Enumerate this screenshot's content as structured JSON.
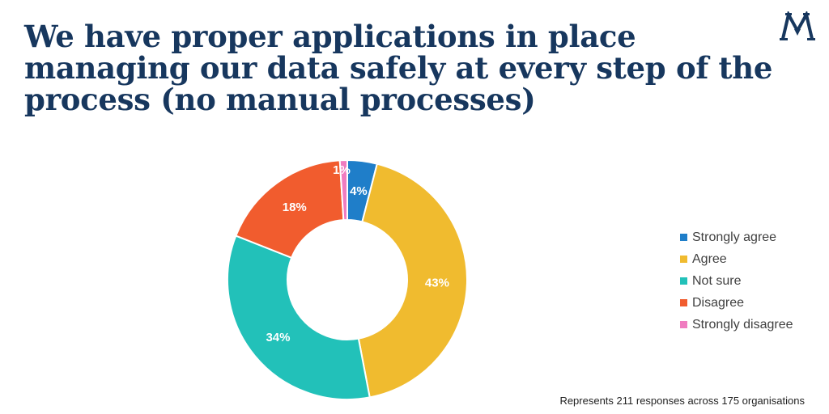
{
  "title": "We have proper applications in place managing our data safely at every step of the process (no manual processes)",
  "logo": {
    "icon": "monogram-logo-icon",
    "text": "M"
  },
  "footnote": "Represents 211 responses across 175 organisations",
  "chart_data": {
    "type": "donut",
    "categories": [
      "Strongly agree",
      "Agree",
      "Not sure",
      "Disagree",
      "Strongly disagree"
    ],
    "values": [
      4,
      43,
      34,
      18,
      1
    ],
    "labels": [
      "4%",
      "43%",
      "34%",
      "18%",
      "1%"
    ],
    "colors": [
      "#1f7ec9",
      "#f0bb2f",
      "#22c1b9",
      "#f15c2e",
      "#f07cc0"
    ],
    "start_angle_deg": 0,
    "direction": "clockwise",
    "legend_position": "right",
    "title_color": "#17375e"
  }
}
